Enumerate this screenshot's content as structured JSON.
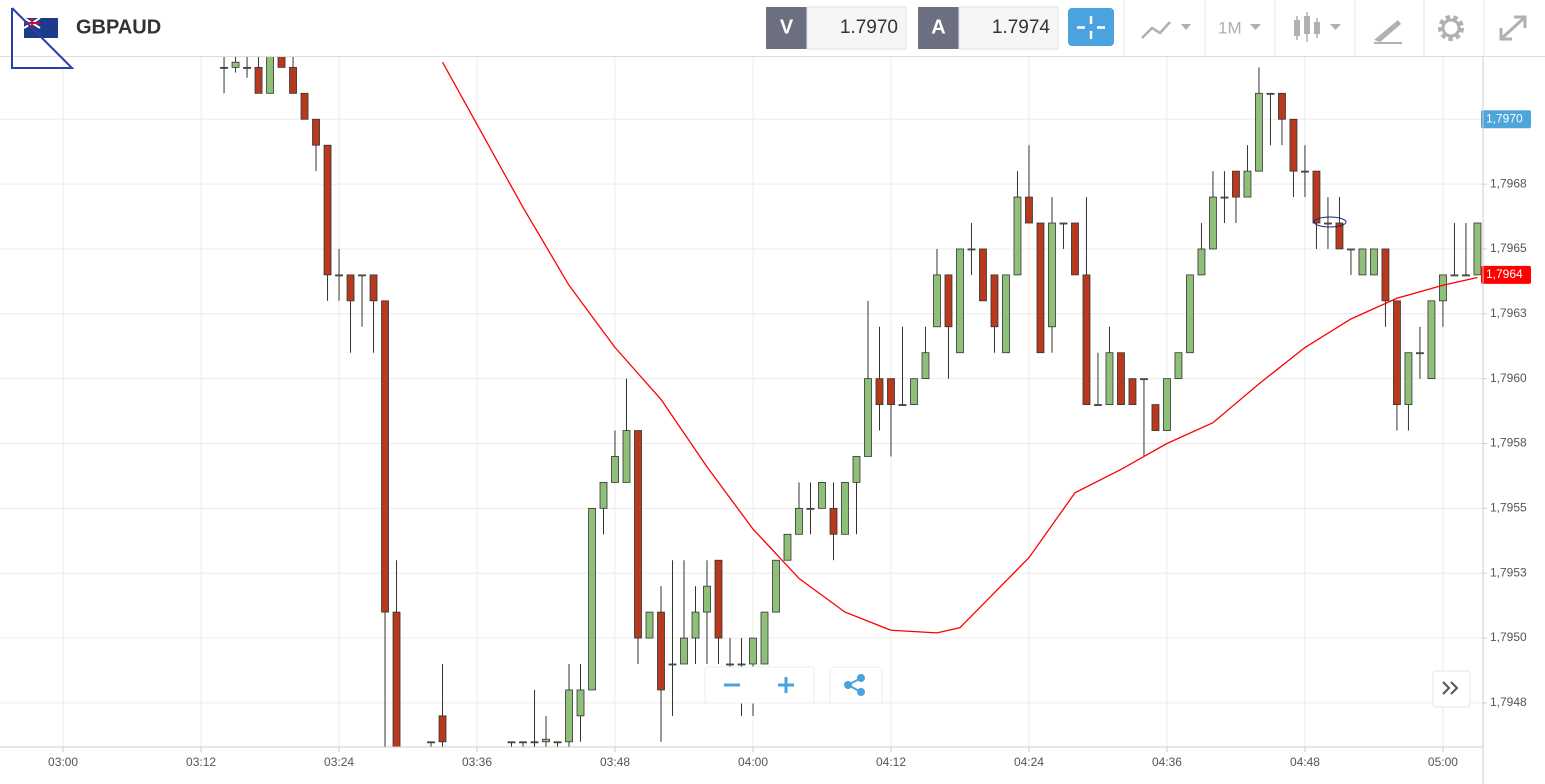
{
  "header": {
    "symbol": "GBPAUD",
    "sell_label": "V",
    "sell_price": "1.7970",
    "buy_label": "A",
    "buy_price": "1.7974",
    "timeframe": "1M"
  },
  "chart_data": {
    "type": "candlestick",
    "xlim": [
      "02:54:31",
      "05:03:29"
    ],
    "ylim": [
      1.79458,
      1.79724
    ],
    "xticks": [
      "03:00",
      "03:12",
      "03:24",
      "03:36",
      "03:48",
      "04:00",
      "04:12",
      "04:24",
      "04:36",
      "04:48",
      "05:00"
    ],
    "yticks": [
      {
        "value": 1.79475,
        "label": "1,7948"
      },
      {
        "value": 1.795,
        "label": "1,7950"
      },
      {
        "value": 1.79525,
        "label": "1,7953"
      },
      {
        "value": 1.7955,
        "label": "1,7955"
      },
      {
        "value": 1.79575,
        "label": "1,7958"
      },
      {
        "value": 1.796,
        "label": "1,7960"
      },
      {
        "value": 1.79625,
        "label": "1,7963"
      },
      {
        "value": 1.7965,
        "label": "1,7965"
      },
      {
        "value": 1.79675,
        "label": "1,7968"
      },
      {
        "value": 1.797,
        "label": "1,7970"
      }
    ],
    "grid": true,
    "up_color": "#8fc07a",
    "down_color": "#b83a1e",
    "x": [
      "03:14",
      "03:15",
      "03:16",
      "03:17",
      "03:18",
      "03:19",
      "03:20",
      "03:21",
      "03:22",
      "03:23",
      "03:24",
      "03:25",
      "03:26",
      "03:27",
      "03:28",
      "03:29",
      "03:32",
      "03:33",
      "03:39",
      "03:40",
      "03:41",
      "03:42",
      "03:43",
      "03:44",
      "03:45",
      "03:46",
      "03:47",
      "03:48",
      "03:49",
      "03:50",
      "03:51",
      "03:52",
      "03:53",
      "03:54",
      "03:55",
      "03:56",
      "03:57",
      "03:58",
      "03:59",
      "04:00",
      "04:01",
      "04:02",
      "04:03",
      "04:04",
      "04:05",
      "04:06",
      "04:07",
      "04:08",
      "04:09",
      "04:10",
      "04:11",
      "04:12",
      "04:13",
      "04:14",
      "04:15",
      "04:16",
      "04:17",
      "04:18",
      "04:19",
      "04:20",
      "04:21",
      "04:22",
      "04:23",
      "04:24",
      "04:25",
      "04:26",
      "04:27",
      "04:28",
      "04:29",
      "04:30",
      "04:31",
      "04:32",
      "04:33",
      "04:34",
      "04:35",
      "04:36",
      "04:37",
      "04:38",
      "04:39",
      "04:40",
      "04:41",
      "04:42",
      "04:43",
      "04:44",
      "04:45",
      "04:46",
      "04:47",
      "04:48",
      "04:49",
      "04:50",
      "04:51",
      "04:52",
      "04:53",
      "04:54",
      "04:55",
      "04:56",
      "04:57",
      "04:58",
      "04:59",
      "05:00",
      "05:01",
      "05:02",
      "05:03"
    ],
    "open": [
      1.7972,
      1.7972,
      1.7972,
      1.7972,
      1.7971,
      1.7973,
      1.7972,
      1.7971,
      1.797,
      1.7969,
      1.7964,
      1.7964,
      1.7964,
      1.7964,
      1.7963,
      1.7951,
      1.7946,
      1.7947,
      1.7946,
      1.7946,
      1.7946,
      1.7946,
      1.7946,
      1.7946,
      1.7947,
      1.7948,
      1.7955,
      1.7956,
      1.7956,
      1.7958,
      1.795,
      1.7951,
      1.7949,
      1.7949,
      1.795,
      1.7951,
      1.7953,
      1.7949,
      1.7949,
      1.7949,
      1.7949,
      1.7951,
      1.7953,
      1.7954,
      1.7955,
      1.7955,
      1.7955,
      1.7954,
      1.7956,
      1.7957,
      1.796,
      1.796,
      1.7959,
      1.7959,
      1.796,
      1.7962,
      1.7964,
      1.7961,
      1.7965,
      1.7965,
      1.7964,
      1.7961,
      1.7964,
      1.7967,
      1.7966,
      1.7962,
      1.7966,
      1.7966,
      1.7964,
      1.7959,
      1.7959,
      1.7961,
      1.796,
      1.796,
      1.7959,
      1.7958,
      1.796,
      1.7961,
      1.7964,
      1.7965,
      1.7967,
      1.7968,
      1.7967,
      1.7968,
      1.7971,
      1.7971,
      1.797,
      1.7968,
      1.7968,
      1.7966,
      1.7966,
      1.7965,
      1.7964,
      1.7964,
      1.7965,
      1.7963,
      1.7959,
      1.7961,
      1.796,
      1.7963,
      1.7964,
      1.7964,
      1.7964
    ],
    "high": [
      1.7973,
      1.7973,
      1.7973,
      1.7973,
      1.7973,
      1.7973,
      1.7973,
      1.7971,
      1.797,
      1.7969,
      1.7965,
      1.7964,
      1.7964,
      1.7964,
      1.7963,
      1.7953,
      1.7946,
      1.7949,
      1.7946,
      1.7946,
      1.7948,
      1.7947,
      1.7946,
      1.7949,
      1.7949,
      1.7955,
      1.7956,
      1.7958,
      1.796,
      1.7958,
      1.7951,
      1.7952,
      1.7953,
      1.7953,
      1.7952,
      1.7953,
      1.7953,
      1.795,
      1.795,
      1.795,
      1.7951,
      1.7953,
      1.7954,
      1.7956,
      1.7956,
      1.7956,
      1.7956,
      1.7956,
      1.7957,
      1.7963,
      1.7962,
      1.796,
      1.7962,
      1.796,
      1.7962,
      1.7965,
      1.7964,
      1.7965,
      1.7966,
      1.7965,
      1.7964,
      1.7964,
      1.7968,
      1.7969,
      1.7966,
      1.7967,
      1.7966,
      1.7966,
      1.7967,
      1.7961,
      1.7962,
      1.7961,
      1.796,
      1.796,
      1.7959,
      1.796,
      1.7961,
      1.7964,
      1.7966,
      1.7968,
      1.7968,
      1.7968,
      1.7969,
      1.7972,
      1.7971,
      1.7971,
      1.797,
      1.7969,
      1.7968,
      1.7967,
      1.7967,
      1.7965,
      1.7965,
      1.7965,
      1.7965,
      1.7963,
      1.7961,
      1.7962,
      1.7963,
      1.7964,
      1.7966,
      1.7966,
      1.7966
    ],
    "low": [
      1.7971,
      1.79718,
      1.79716,
      1.7971,
      1.7971,
      1.7972,
      1.7971,
      1.797,
      1.7968,
      1.7963,
      1.7963,
      1.7961,
      1.7962,
      1.7961,
      1.7945,
      1.7944,
      1.7945,
      1.7945,
      1.7945,
      1.7945,
      1.7945,
      1.7945,
      1.7945,
      1.7945,
      1.7946,
      1.7948,
      1.7954,
      1.7956,
      1.7956,
      1.7949,
      1.795,
      1.7946,
      1.7947,
      1.7949,
      1.7949,
      1.7949,
      1.7949,
      1.7948,
      1.7947,
      1.7947,
      1.7949,
      1.7951,
      1.7953,
      1.7954,
      1.7954,
      1.7955,
      1.7953,
      1.7954,
      1.7954,
      1.7957,
      1.7958,
      1.7957,
      1.7959,
      1.7959,
      1.796,
      1.7962,
      1.796,
      1.7961,
      1.7964,
      1.7963,
      1.7961,
      1.7961,
      1.7964,
      1.7966,
      1.7961,
      1.7961,
      1.7965,
      1.7964,
      1.7959,
      1.7959,
      1.7959,
      1.7959,
      1.7959,
      1.7957,
      1.7958,
      1.7958,
      1.796,
      1.7961,
      1.7964,
      1.7965,
      1.7966,
      1.7966,
      1.7967,
      1.7968,
      1.7969,
      1.7969,
      1.7967,
      1.7967,
      1.7965,
      1.7965,
      1.7965,
      1.7964,
      1.7964,
      1.7964,
      1.7962,
      1.7958,
      1.7958,
      1.796,
      1.796,
      1.7962,
      1.7964,
      1.7964,
      1.7964
    ],
    "close": [
      1.7972,
      1.79722,
      1.7972,
      1.7971,
      1.7973,
      1.7972,
      1.7971,
      1.797,
      1.7969,
      1.7964,
      1.7964,
      1.7963,
      1.7964,
      1.7963,
      1.7951,
      1.7944,
      1.7946,
      1.7946,
      1.7946,
      1.7946,
      1.7946,
      1.79461,
      1.7946,
      1.7948,
      1.7948,
      1.7955,
      1.7956,
      1.7957,
      1.7958,
      1.795,
      1.7951,
      1.7948,
      1.7949,
      1.795,
      1.7951,
      1.7952,
      1.795,
      1.7949,
      1.7949,
      1.795,
      1.7951,
      1.7953,
      1.7954,
      1.7955,
      1.7955,
      1.7956,
      1.7954,
      1.7956,
      1.7957,
      1.796,
      1.7959,
      1.7959,
      1.7959,
      1.796,
      1.7961,
      1.7964,
      1.7962,
      1.7965,
      1.7965,
      1.7963,
      1.7962,
      1.7964,
      1.7967,
      1.7966,
      1.7961,
      1.7966,
      1.7966,
      1.7964,
      1.7959,
      1.7959,
      1.7961,
      1.7959,
      1.7959,
      1.796,
      1.7958,
      1.796,
      1.7961,
      1.7964,
      1.7965,
      1.7967,
      1.7967,
      1.7967,
      1.7968,
      1.7971,
      1.7971,
      1.797,
      1.7968,
      1.7968,
      1.7966,
      1.7966,
      1.7965,
      1.7965,
      1.7965,
      1.7965,
      1.7963,
      1.7959,
      1.7961,
      1.7961,
      1.7963,
      1.7964,
      1.7964,
      1.7964,
      1.7966
    ],
    "lines": [
      {
        "color": "#ff0000",
        "x": [
          "03:33",
          "03:36",
          "03:40",
          "03:44",
          "03:48",
          "03:52",
          "03:56",
          "04:00",
          "04:04",
          "04:08",
          "04:12",
          "04:16",
          "04:18",
          "04:20",
          "04:24",
          "04:28",
          "04:32",
          "04:36",
          "04:40",
          "04:44",
          "04:48",
          "04:52",
          "04:56",
          "05:00",
          "05:03"
        ],
        "values": [
          1.79722,
          1.79698,
          1.79666,
          1.79636,
          1.79612,
          1.79592,
          1.79566,
          1.79542,
          1.79523,
          1.7951,
          1.79503,
          1.79502,
          1.79504,
          1.79513,
          1.79531,
          1.79556,
          1.79565,
          1.79575,
          1.79583,
          1.79598,
          1.79612,
          1.79623,
          1.79631,
          1.79636,
          1.79639
        ]
      }
    ],
    "price_markers": [
      {
        "value": 1.797,
        "label": "1,7970",
        "color": "#4ea5d9"
      },
      {
        "value": 1.7964,
        "label": "1,7964",
        "color": "#ff0000"
      }
    ]
  }
}
